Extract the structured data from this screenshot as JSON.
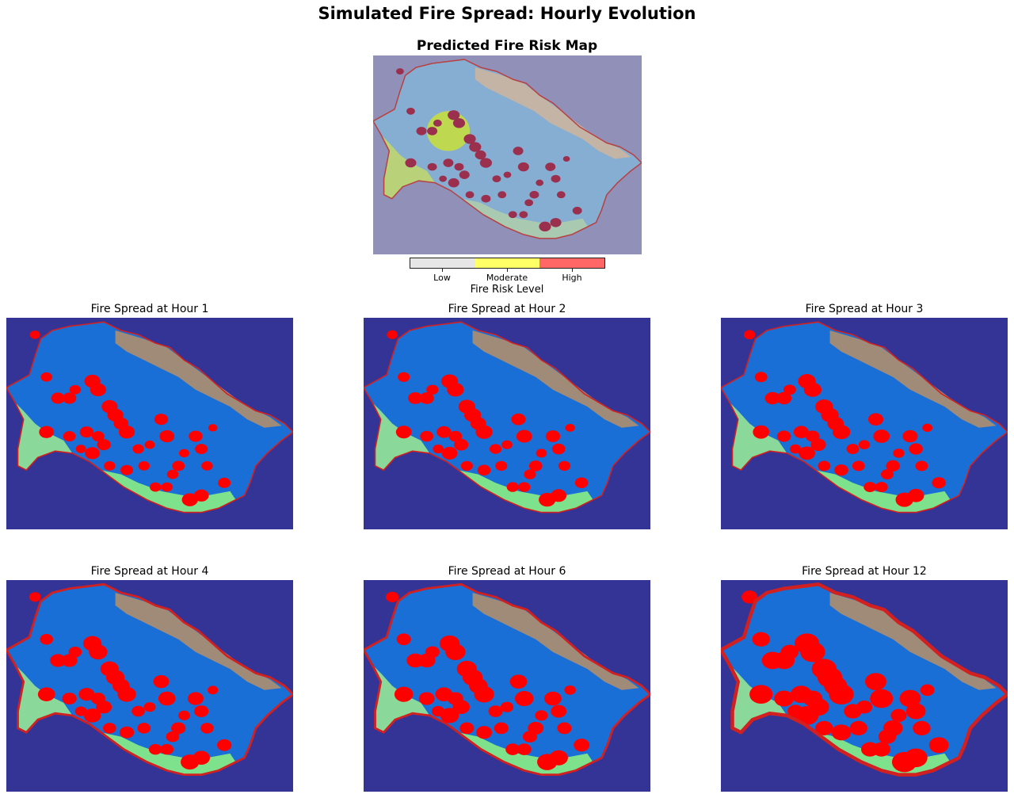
{
  "title": "Simulated Fire Spread: Hourly Evolution",
  "risk_map": {
    "title": "Predicted Fire Risk Map",
    "colorbar_label": "Fire Risk Level",
    "levels": [
      {
        "label": "Low",
        "color": "#e6e6e6"
      },
      {
        "label": "Moderate",
        "color": "#ffff66"
      },
      {
        "label": "High",
        "color": "#ff6666"
      }
    ]
  },
  "colors": {
    "risk_background": "#9090b8",
    "spread_background": "#343396",
    "fire": "#ff0000",
    "risk_hotspot": "#9b2f4e",
    "boundary": "#d22020"
  },
  "chart_data": [
    {
      "type": "heatmap",
      "title": "Predicted Fire Risk Map",
      "legend": {
        "title": "Fire Risk Level",
        "categories": [
          "Low",
          "Moderate",
          "High"
        ],
        "placement": "bottom"
      }
    },
    {
      "type": "heatmap",
      "panels": [
        {
          "title": "Fire Spread at Hour 1",
          "hour": 1
        },
        {
          "title": "Fire Spread at Hour 2",
          "hour": 2
        },
        {
          "title": "Fire Spread at Hour 3",
          "hour": 3
        },
        {
          "title": "Fire Spread at Hour 4",
          "hour": 4
        },
        {
          "title": "Fire Spread at Hour 6",
          "hour": 6
        },
        {
          "title": "Fire Spread at Hour 12",
          "hour": 12
        }
      ]
    }
  ]
}
